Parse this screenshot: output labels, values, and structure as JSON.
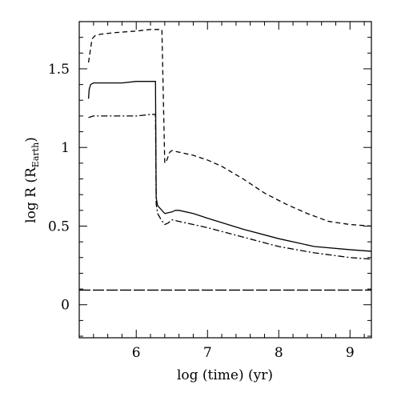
{
  "chart_data": {
    "type": "line",
    "xlabel": "log (time) (yr)",
    "ylabel_main": "log R (R",
    "ylabel_sub": "Earth",
    "ylabel_close": ")",
    "xlim": [
      5.2,
      9.3
    ],
    "ylim": [
      -0.21,
      1.8
    ],
    "x_ticks": [
      6,
      7,
      8,
      9
    ],
    "x_tick_labels": [
      "6",
      "7",
      "8",
      "9"
    ],
    "x_minor_step": 0.2,
    "y_ticks": [
      0,
      0.5,
      1,
      1.5
    ],
    "y_tick_labels": [
      "0",
      "0.5",
      "1",
      "1.5"
    ],
    "y_minor_step": 0.1,
    "grid": false,
    "legend": "none",
    "series": [
      {
        "style": "dashed",
        "x": [
          5.33,
          5.36,
          5.38,
          5.42,
          5.5,
          5.7,
          6.0,
          6.2,
          6.36,
          6.4,
          6.43,
          6.47,
          6.5,
          6.6,
          6.8,
          7.0,
          7.2,
          7.5,
          7.8,
          8.1,
          8.4,
          8.7,
          9.0,
          9.3
        ],
        "y": [
          1.54,
          1.63,
          1.69,
          1.71,
          1.72,
          1.73,
          1.74,
          1.75,
          1.75,
          0.9,
          0.92,
          0.97,
          0.98,
          0.97,
          0.95,
          0.92,
          0.88,
          0.8,
          0.71,
          0.64,
          0.58,
          0.53,
          0.51,
          0.5
        ]
      },
      {
        "style": "solid",
        "x": [
          5.33,
          5.34,
          5.36,
          5.4,
          5.5,
          5.8,
          6.0,
          6.2,
          6.27,
          6.28,
          6.3,
          6.4,
          6.5,
          6.55,
          6.6,
          6.8,
          7.0,
          7.5,
          8.0,
          8.5,
          9.0,
          9.3
        ],
        "y": [
          1.31,
          1.37,
          1.4,
          1.41,
          1.41,
          1.41,
          1.42,
          1.42,
          1.42,
          0.68,
          0.63,
          0.58,
          0.59,
          0.6,
          0.6,
          0.58,
          0.55,
          0.48,
          0.42,
          0.37,
          0.35,
          0.34
        ]
      },
      {
        "style": "dashdot",
        "x": [
          5.33,
          5.4,
          5.6,
          5.8,
          6.0,
          6.2,
          6.27,
          6.28,
          6.3,
          6.35,
          6.4,
          6.45,
          6.5,
          6.6,
          6.8,
          7.0,
          7.5,
          8.0,
          8.5,
          9.0,
          9.3
        ],
        "y": [
          1.19,
          1.2,
          1.2,
          1.2,
          1.2,
          1.21,
          1.21,
          0.64,
          0.58,
          0.54,
          0.51,
          0.52,
          0.54,
          0.53,
          0.51,
          0.49,
          0.43,
          0.37,
          0.33,
          0.3,
          0.29
        ]
      },
      {
        "style": "longdash",
        "x": [
          5.2,
          9.3
        ],
        "y": [
          0.093,
          0.093
        ]
      }
    ]
  }
}
